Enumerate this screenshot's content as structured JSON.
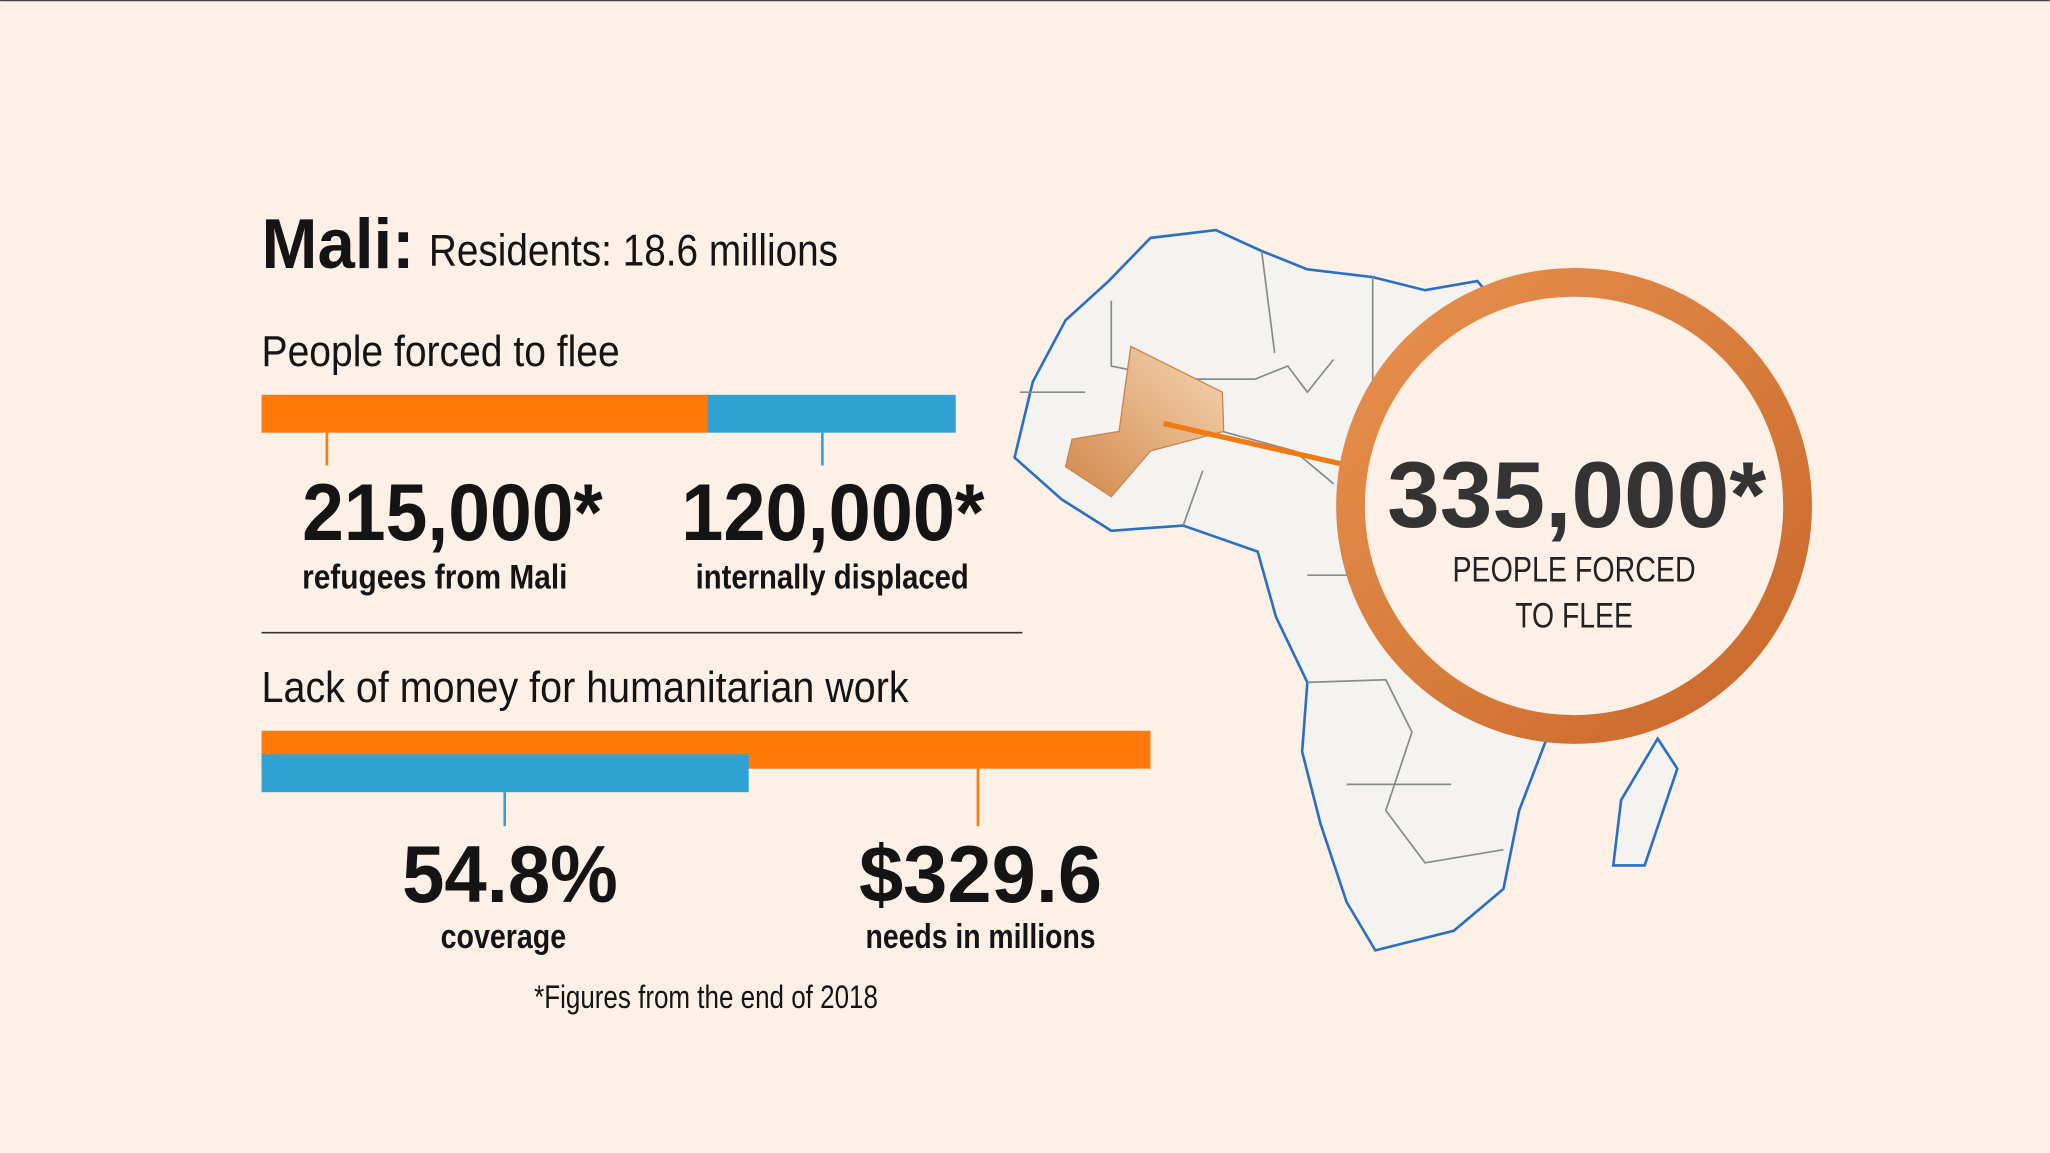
{
  "header": {
    "title": "Mali:",
    "subtitle": "Residents: 18.6 millions"
  },
  "flee": {
    "heading": "People forced to flee",
    "refugees": {
      "value": 215000,
      "label": "215,000*",
      "caption": "refugees from Mali"
    },
    "displaced": {
      "value": 120000,
      "label": "120,000*",
      "caption": "internally displaced"
    }
  },
  "funding": {
    "heading": "Lack of money for humanitarian work",
    "coverage": {
      "value": 54.8,
      "label": "54.8%",
      "caption": "coverage"
    },
    "needs": {
      "value": 329.6,
      "label": "$329.6",
      "caption": "needs in millions"
    }
  },
  "footnote": "*Figures from the end of 2018",
  "callout": {
    "value": 335000,
    "label": "335,000*",
    "lines": [
      "PEOPLE FORCED",
      "TO FLEE"
    ]
  }
}
